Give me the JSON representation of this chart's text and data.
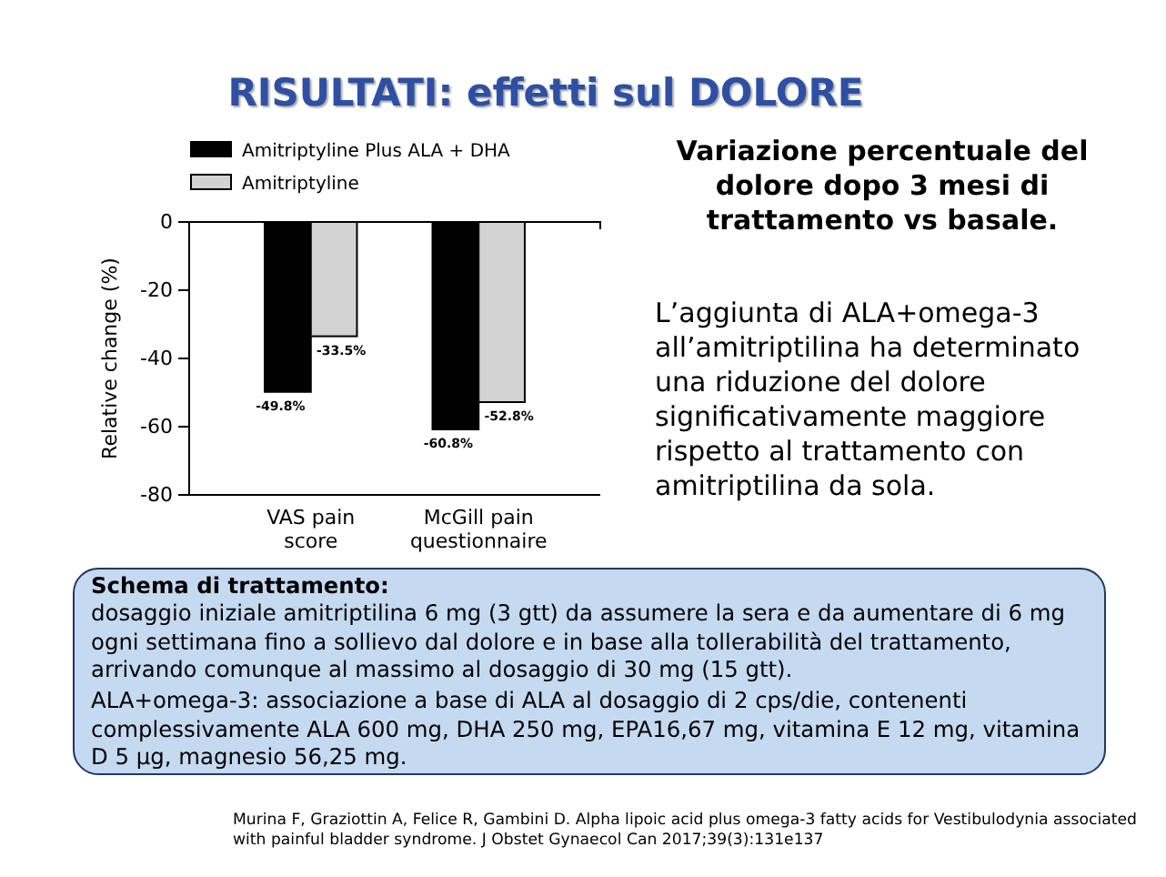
{
  "chart_data": {
    "type": "bar",
    "title": "RISULTATI: effetti sul DOLORE",
    "ylabel": "Relative change (%)",
    "categories": [
      "VAS pain score",
      "McGill pain questionnaire"
    ],
    "series": [
      {
        "name": "Amitriptyline Plus ALA + DHA",
        "color": "#000000",
        "values": [
          -49.8,
          -60.8
        ],
        "value_labels": [
          "-49.8%",
          "-60.8%"
        ]
      },
      {
        "name": "Amitriptyline",
        "color": "#d3d3d3",
        "values": [
          -33.5,
          -52.8
        ],
        "value_labels": [
          "-33.5%",
          "-52.8%"
        ]
      }
    ],
    "ylim": [
      -80,
      0
    ],
    "yticks": [
      -80,
      -60,
      -40,
      -20,
      0
    ],
    "legend": "top left",
    "grid": false,
    "annotations": [
      "Variazione percentuale del dolore dopo 3 mesi di trattamento vs basale.",
      "L’aggiunta di ALA+omega-3 all’amitriptilina ha determinato una riduzione del dolore significativamente maggiore rispetto al trattamento con amitriptilina da sola.",
      "Schema di trattamento:",
      "dosaggio iniziale amitriptilina 6 mg (3 gtt) da assumere la sera e da aumentare di 6 mg ogni settimana fino a sollievo dal dolore e in base alla tollerabilità del trattamento, arrivando comunque al massimo al dosaggio di 30 mg (15 gtt).",
      "ALA+omega-3: associazione a base di ALA al dosaggio di 2 cps/die, contenenti complessivamente ALA 600 mg, DHA 250 mg, EPA16,67 mg, vitamina E 12 mg, vitamina D 5 µg, magnesio 56,25 mg.",
      "Murina F, Graziottin A, Felice R, Gambini D. Alpha lipoic acid plus omega-3 fatty acids for Vestibulodynia associated with painful bladder syndrome. J Obstet Gynaecol Can 2017;39(3):131e137"
    ]
  }
}
